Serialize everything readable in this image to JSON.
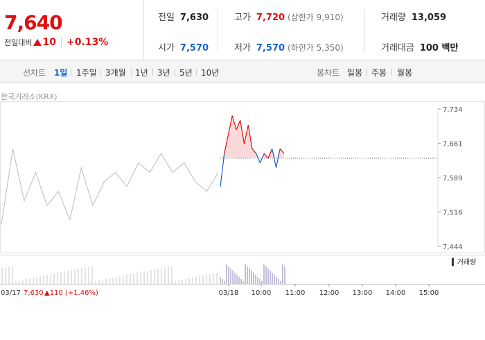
{
  "price": {
    "current": "7,640",
    "diff_label": "전일대비",
    "diff_value": "10",
    "diff_pct": "+0.13%"
  },
  "stats": {
    "prev_close_label": "전일",
    "prev_close": "7,630",
    "high_label": "고가",
    "high": "7,720",
    "upper_limit": "(상한가 9,910)",
    "volume_label": "거래량",
    "volume": "13,059",
    "open_label": "시가",
    "open": "7,570",
    "low_label": "저가",
    "low": "7,570",
    "lower_limit": "(하한가 5,350)",
    "amount_label": "거래대금",
    "amount": "100 백만"
  },
  "line_tabs": {
    "label": "선차트",
    "items": [
      "1일",
      "1주일",
      "3개월",
      "1년",
      "3년",
      "5년",
      "10년"
    ],
    "active": "1일"
  },
  "candle_tabs": {
    "label": "봉차트",
    "items": [
      "일봉",
      "주봉",
      "월봉"
    ]
  },
  "source_label": "한국거래소(KRX)",
  "volume_legend": "거래량",
  "prev_day_info": {
    "date": "03/17",
    "close": "7,630",
    "change": "110",
    "pct": "(+1.46%)"
  },
  "colors": {
    "up": "#e00e0e",
    "down": "#1663c7",
    "prev_line": "#bbbbbb",
    "volume": "#8a7fb5"
  },
  "chart_data": {
    "type": "line",
    "ylim": [
      7444,
      7734
    ],
    "y_ticks": [
      "7,734",
      "7,661",
      "7,589",
      "7,516",
      "7,444"
    ],
    "x_ticks": [
      "03/18",
      "10:00",
      "11:00",
      "12:00",
      "13:00",
      "14:00",
      "15:00"
    ],
    "base_price": 7630,
    "series": [
      {
        "name": "03/17",
        "values": [
          7490,
          7650,
          7540,
          7600,
          7530,
          7560,
          7500,
          7610,
          7530,
          7580,
          7600,
          7570,
          7620,
          7600,
          7640,
          7600,
          7620,
          7580,
          7560,
          7600
        ]
      },
      {
        "name": "03/18",
        "values": [
          7570,
          7640,
          7680,
          7720,
          7690,
          7710,
          7660,
          7700,
          7650,
          7640,
          7620,
          7640,
          7630,
          7650,
          7610,
          7650,
          7640
        ]
      }
    ]
  }
}
